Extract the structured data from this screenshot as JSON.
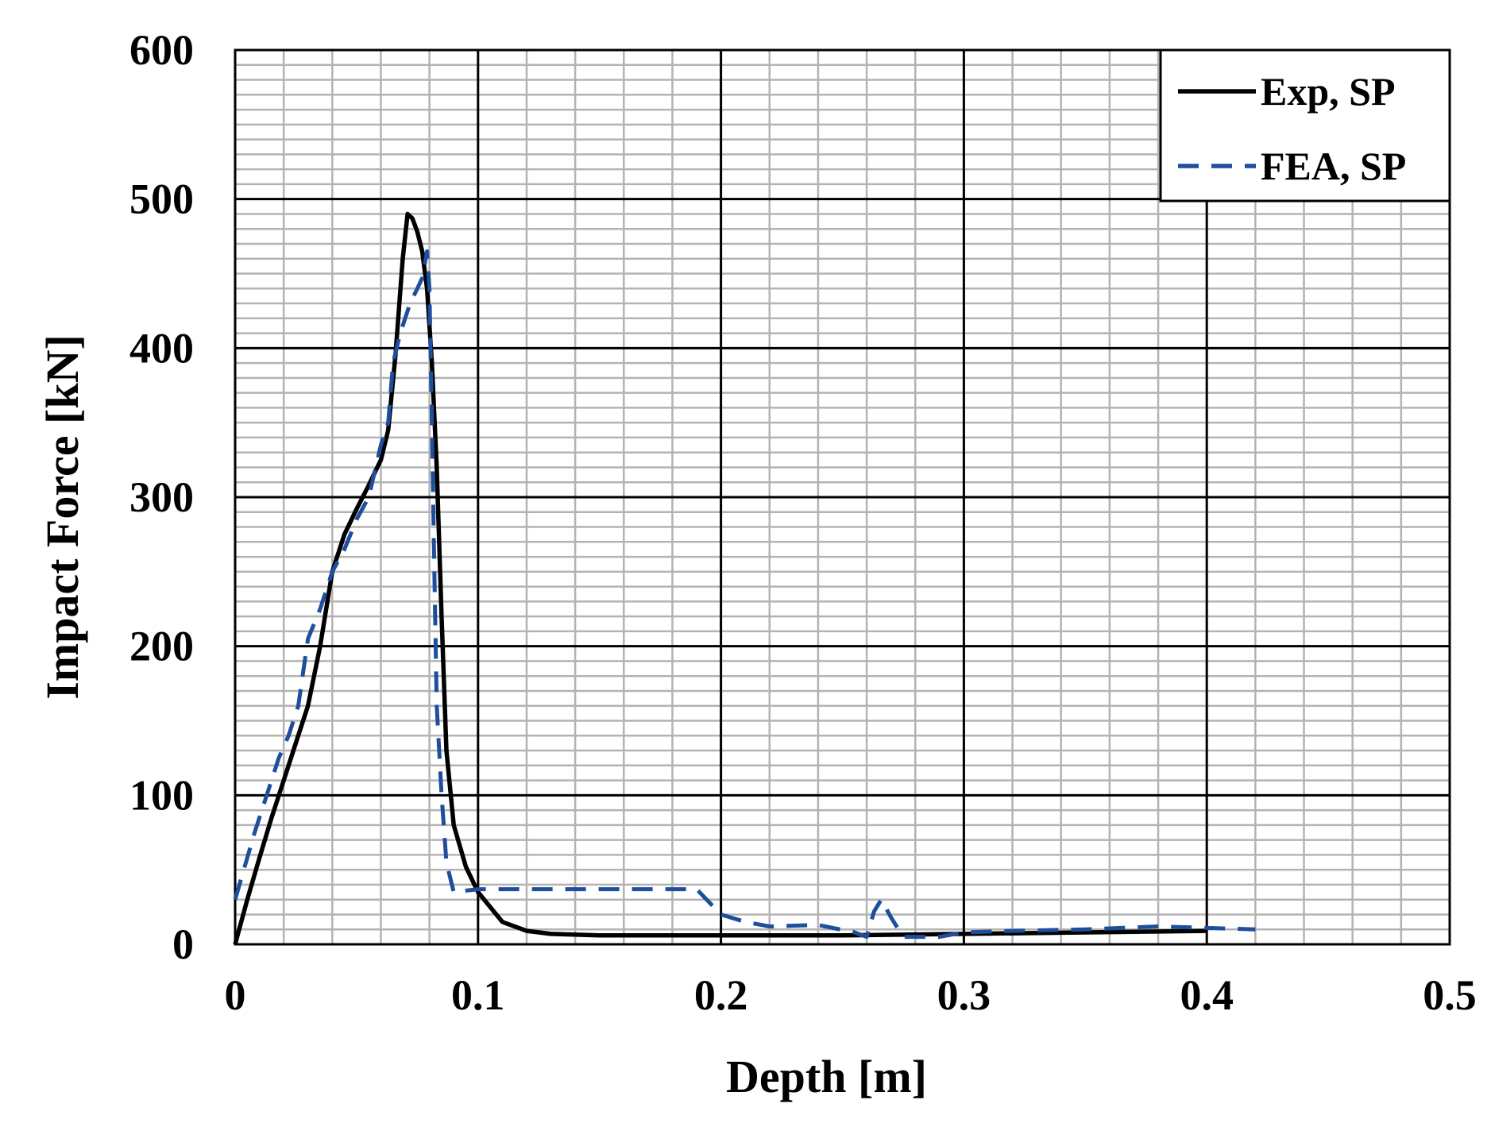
{
  "chart_data": {
    "type": "line",
    "xlabel": "Depth [m]",
    "ylabel": "Impact Force [kN]",
    "xlim": [
      0,
      0.5
    ],
    "ylim": [
      0,
      600
    ],
    "x_ticks": [
      "0",
      "0.1",
      "0.2",
      "0.3",
      "0.4",
      "0.5"
    ],
    "y_ticks": [
      "0",
      "100",
      "200",
      "300",
      "400",
      "500",
      "600"
    ],
    "x_tick_values": [
      0,
      0.1,
      0.2,
      0.3,
      0.4,
      0.5
    ],
    "y_tick_values": [
      0,
      100,
      200,
      300,
      400,
      500,
      600
    ],
    "major_grid": true,
    "minor_grid": true,
    "legend_position": "top-right",
    "series": [
      {
        "name": "Exp, SP",
        "style": "solid",
        "color": "#000000",
        "points": [
          [
            0,
            0
          ],
          [
            0.005,
            30
          ],
          [
            0.01,
            58
          ],
          [
            0.015,
            85
          ],
          [
            0.02,
            110
          ],
          [
            0.025,
            135
          ],
          [
            0.03,
            160
          ],
          [
            0.035,
            200
          ],
          [
            0.04,
            250
          ],
          [
            0.045,
            275
          ],
          [
            0.05,
            292
          ],
          [
            0.055,
            308
          ],
          [
            0.06,
            325
          ],
          [
            0.063,
            345
          ],
          [
            0.066,
            395
          ],
          [
            0.069,
            460
          ],
          [
            0.071,
            490
          ],
          [
            0.073,
            487
          ],
          [
            0.075,
            478
          ],
          [
            0.077,
            465
          ],
          [
            0.079,
            440
          ],
          [
            0.081,
            390
          ],
          [
            0.083,
            320
          ],
          [
            0.085,
            220
          ],
          [
            0.087,
            130
          ],
          [
            0.09,
            80
          ],
          [
            0.095,
            52
          ],
          [
            0.1,
            35
          ],
          [
            0.11,
            15
          ],
          [
            0.12,
            9
          ],
          [
            0.13,
            7
          ],
          [
            0.15,
            6
          ],
          [
            0.2,
            6
          ],
          [
            0.25,
            6
          ],
          [
            0.3,
            7
          ],
          [
            0.35,
            8
          ],
          [
            0.4,
            9
          ]
        ]
      },
      {
        "name": "FEA, SP",
        "style": "dashed",
        "color": "#1f4e9c",
        "points": [
          [
            0,
            30
          ],
          [
            0.008,
            75
          ],
          [
            0.014,
            105
          ],
          [
            0.018,
            125
          ],
          [
            0.022,
            140
          ],
          [
            0.026,
            160
          ],
          [
            0.03,
            205
          ],
          [
            0.035,
            225
          ],
          [
            0.04,
            250
          ],
          [
            0.045,
            265
          ],
          [
            0.05,
            285
          ],
          [
            0.055,
            300
          ],
          [
            0.06,
            335
          ],
          [
            0.063,
            350
          ],
          [
            0.065,
            390
          ],
          [
            0.068,
            410
          ],
          [
            0.072,
            430
          ],
          [
            0.075,
            440
          ],
          [
            0.077,
            447
          ],
          [
            0.079,
            465
          ],
          [
            0.08,
            440
          ],
          [
            0.081,
            350
          ],
          [
            0.082,
            250
          ],
          [
            0.083,
            160
          ],
          [
            0.085,
            100
          ],
          [
            0.087,
            55
          ],
          [
            0.09,
            35
          ],
          [
            0.1,
            37
          ],
          [
            0.15,
            37
          ],
          [
            0.19,
            37
          ],
          [
            0.2,
            20
          ],
          [
            0.21,
            15
          ],
          [
            0.22,
            12
          ],
          [
            0.24,
            13
          ],
          [
            0.255,
            8
          ],
          [
            0.26,
            5
          ],
          [
            0.263,
            22
          ],
          [
            0.266,
            30
          ],
          [
            0.27,
            18
          ],
          [
            0.275,
            5
          ],
          [
            0.29,
            5
          ],
          [
            0.3,
            8
          ],
          [
            0.32,
            9
          ],
          [
            0.35,
            10
          ],
          [
            0.38,
            12
          ],
          [
            0.4,
            11
          ],
          [
            0.42,
            10
          ]
        ]
      }
    ]
  }
}
